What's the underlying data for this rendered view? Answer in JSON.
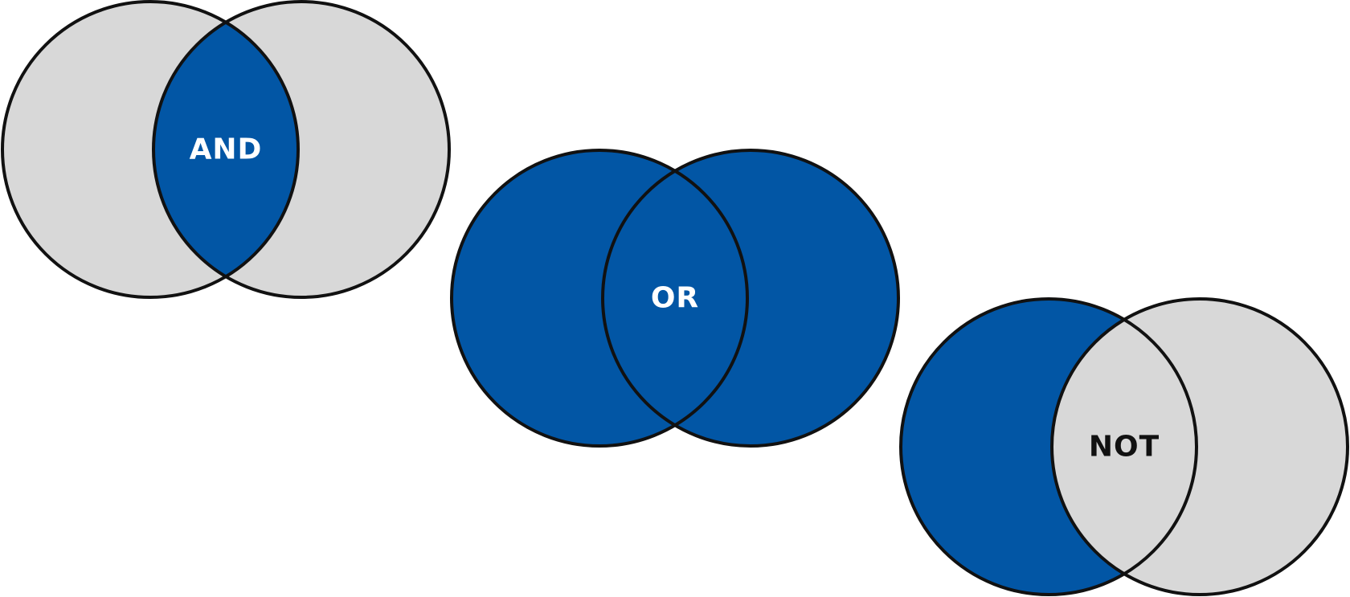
{
  "colors": {
    "selected": "#0256a5",
    "unselected": "#d8d8d8",
    "outline": "#111111",
    "label_on_selected": "#ffffff",
    "label_on_unselected": "#111111"
  },
  "diagrams": [
    {
      "operator": "and",
      "label": "AND",
      "fill": {
        "left_only": "unselected",
        "overlap": "selected",
        "right_only": "unselected"
      },
      "label_color": "label_on_selected"
    },
    {
      "operator": "or",
      "label": "OR",
      "fill": {
        "left_only": "selected",
        "overlap": "selected",
        "right_only": "selected"
      },
      "label_color": "label_on_selected"
    },
    {
      "operator": "not",
      "label": "NOT",
      "fill": {
        "left_only": "selected",
        "overlap": "unselected",
        "right_only": "unselected"
      },
      "label_color": "label_on_unselected"
    }
  ]
}
